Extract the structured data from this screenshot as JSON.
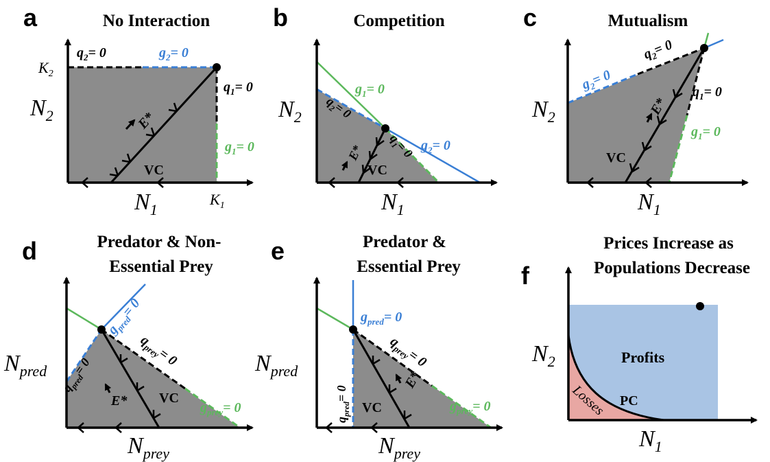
{
  "panels": {
    "a": {
      "label": "a",
      "title": "No Interaction",
      "q2": "q",
      "q2sub": "2",
      "g2": "g",
      "g2sub": "2",
      "eq": "= 0",
      "q1": "q",
      "q1sub": "1",
      "g1": "g",
      "g1sub": "1",
      "K2": "K",
      "K2sub": "2",
      "K1": "K",
      "K1sub": "1",
      "yaxis": "N",
      "yaxis_sub": "2",
      "xaxis": "N",
      "xaxis_sub": "1",
      "E": "E*",
      "VC": "VC"
    },
    "b": {
      "label": "b",
      "title": "Competition",
      "g1": "g",
      "g1sub": "1",
      "g2": "g",
      "g2sub": "2",
      "q2": "q",
      "q2sub": "2",
      "q1": "q",
      "q1sub": "1",
      "eq": "= 0",
      "yaxis": "N",
      "yaxis_sub": "2",
      "xaxis": "N",
      "xaxis_sub": "1",
      "E": "E*",
      "VC": "VC"
    },
    "c": {
      "label": "c",
      "title": "Mutualism",
      "g2": "g",
      "g2sub": "2",
      "q2": "q",
      "q2sub": "2",
      "q1": "q",
      "q1sub": "1",
      "g1": "g",
      "g1sub": "1",
      "eq": "= 0",
      "yaxis": "N",
      "yaxis_sub": "2",
      "xaxis": "N",
      "xaxis_sub": "1",
      "E": "E*",
      "VC": "VC"
    },
    "d": {
      "label": "d",
      "title1": "Predator & Non-",
      "title2": "Essential Prey",
      "gpred": "g",
      "gpred_sub": "pred",
      "qprey": "q",
      "qprey_sub": "prey",
      "qpred": "q",
      "qpred_sub": "pred",
      "gprey": "g",
      "gprey_sub": "prey",
      "eq": "= 0",
      "yaxis": "N",
      "yaxis_sub": "pred",
      "xaxis": "N",
      "xaxis_sub": "prey",
      "E": "E*",
      "VC": "VC"
    },
    "e": {
      "label": "e",
      "title1": "Predator &",
      "title2": "Essential Prey",
      "gpred": "g",
      "gpred_sub": "pred",
      "qprey": "q",
      "qprey_sub": "prey",
      "qpred": "q",
      "qpred_sub": "pred",
      "gprey": "g",
      "gprey_sub": "prey",
      "eq": "= 0",
      "yaxis": "N",
      "yaxis_sub": "pred",
      "xaxis": "N",
      "xaxis_sub": "prey",
      "E": "E*",
      "VC": "VC"
    },
    "f": {
      "label": "f",
      "title1": "Prices Increase as",
      "title2": "Populations Decrease",
      "profits": "Profits",
      "losses": "Losses",
      "PC": "PC",
      "yaxis": "N",
      "yaxis_sub": "2",
      "xaxis": "N",
      "xaxis_sub": "1"
    }
  },
  "colors": {
    "region": "#8c8c8c",
    "green": "#5cb85c",
    "blue": "#3a7fd5",
    "profits": "#a9c4e4",
    "losses": "#e8a7a3"
  }
}
